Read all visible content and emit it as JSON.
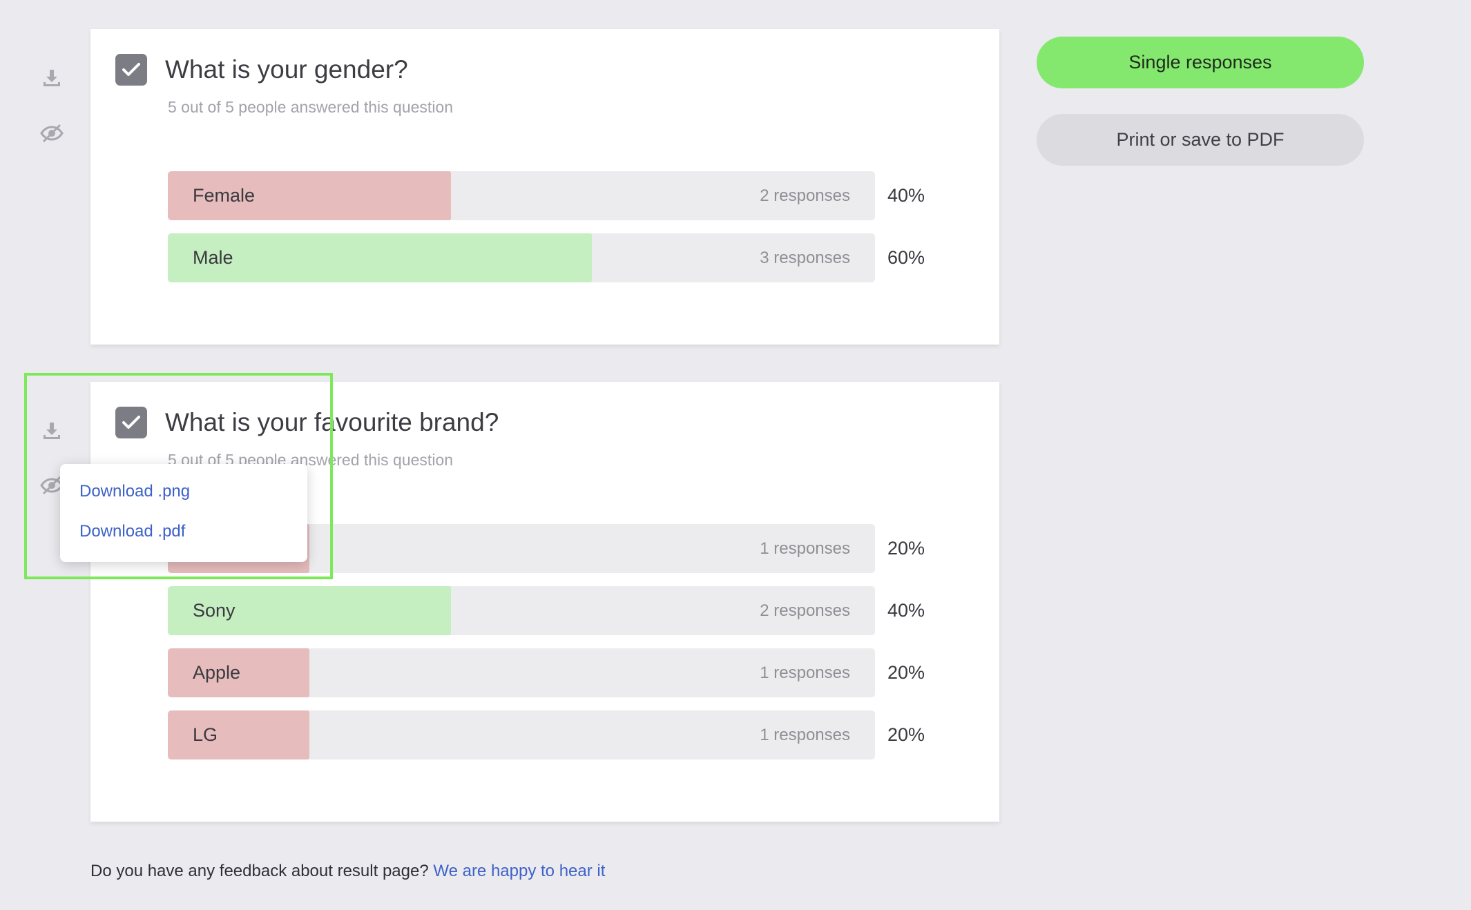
{
  "question1": {
    "title": "What is your gender?",
    "subtitle": "5 out of 5 people answered this question",
    "answers": [
      {
        "label": "Female",
        "count": "2 responses",
        "percent": "40%",
        "share": 0.4,
        "color": "#e6bcbc"
      },
      {
        "label": "Male",
        "count": "3 responses",
        "percent": "60%",
        "share": 0.6,
        "color": "#c5eec1"
      }
    ]
  },
  "question2": {
    "title": "What is your favourite brand?",
    "subtitle": "5 out of 5 people answered this question",
    "answers": [
      {
        "label": "",
        "count": "1 responses",
        "percent": "20%",
        "share": 0.2,
        "color": "#e6bcbc"
      },
      {
        "label": "Sony",
        "count": "2 responses",
        "percent": "40%",
        "share": 0.4,
        "color": "#c5eec1"
      },
      {
        "label": "Apple",
        "count": "1 responses",
        "percent": "20%",
        "share": 0.2,
        "color": "#e6bcbc"
      },
      {
        "label": "LG",
        "count": "1 responses",
        "percent": "20%",
        "share": 0.2,
        "color": "#e6bcbc"
      }
    ]
  },
  "actions": {
    "single_responses": "Single responses",
    "print_pdf": "Print or save to PDF"
  },
  "download_menu": {
    "png": "Download .png",
    "pdf": "Download .pdf"
  },
  "feedback": {
    "text": "Do you have any feedback about result page?",
    "link": "We are happy to hear it"
  },
  "colors": {
    "accent_green": "#84e86f",
    "link_blue": "#3d62c8",
    "highlight": "#7ee85b"
  }
}
